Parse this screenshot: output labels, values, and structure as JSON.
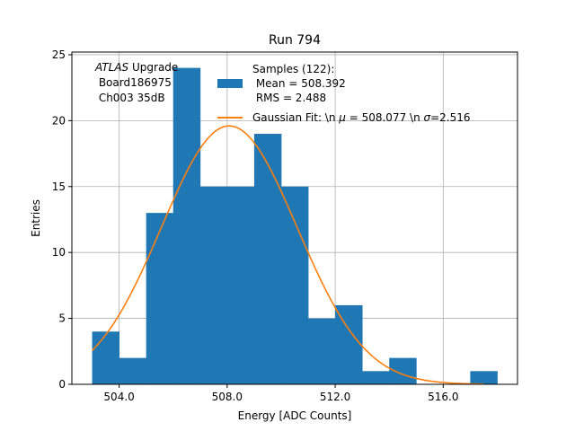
{
  "chart_data": {
    "type": "bar",
    "title": "Run 794",
    "xlabel": "Energy [ADC Counts]",
    "ylabel": "Entries",
    "xlim": [
      502.25,
      518.75
    ],
    "ylim": [
      0,
      25.2
    ],
    "x_ticks": [
      504.0,
      508.0,
      512.0,
      516.0
    ],
    "x_tick_labels": [
      "504.0",
      "508.0",
      "512.0",
      "516.0"
    ],
    "y_ticks": [
      0,
      5,
      10,
      15,
      20,
      25
    ],
    "y_tick_labels": [
      "0",
      "5",
      "10",
      "15",
      "20",
      "25"
    ],
    "grid": true,
    "bar_color": "#1f77b4",
    "fit_color": "#ff7f0e",
    "bins": {
      "edges": [
        503,
        504,
        505,
        506,
        507,
        508,
        509,
        510,
        511,
        512,
        513,
        514,
        515,
        516,
        517,
        518
      ],
      "counts": [
        4,
        2,
        13,
        24,
        15,
        15,
        19,
        15,
        5,
        6,
        1,
        2,
        0,
        0,
        1
      ]
    },
    "gaussian_fit": {
      "mu": 508.077,
      "sigma": 2.516,
      "amplitude": 19.6,
      "x_range": [
        503.0,
        517.5
      ]
    },
    "legend": {
      "placement": "top-right",
      "samples_label": "Samples (122):",
      "mean_label": " Mean = 508.392",
      "rms_label": " RMS = 2.488",
      "fit_label_prefix": "Gaussian Fit: \\n ",
      "fit_mu_symbol": "μ",
      "fit_mu_value": " = 508.077 \\n ",
      "fit_sigma_symbol": "σ",
      "fit_sigma_value": "=2.516"
    },
    "annotation": {
      "atlas": "ATLAS",
      "upgrade": " Upgrade",
      "board": " Board186975",
      "channel": " Ch003 35dB"
    }
  }
}
